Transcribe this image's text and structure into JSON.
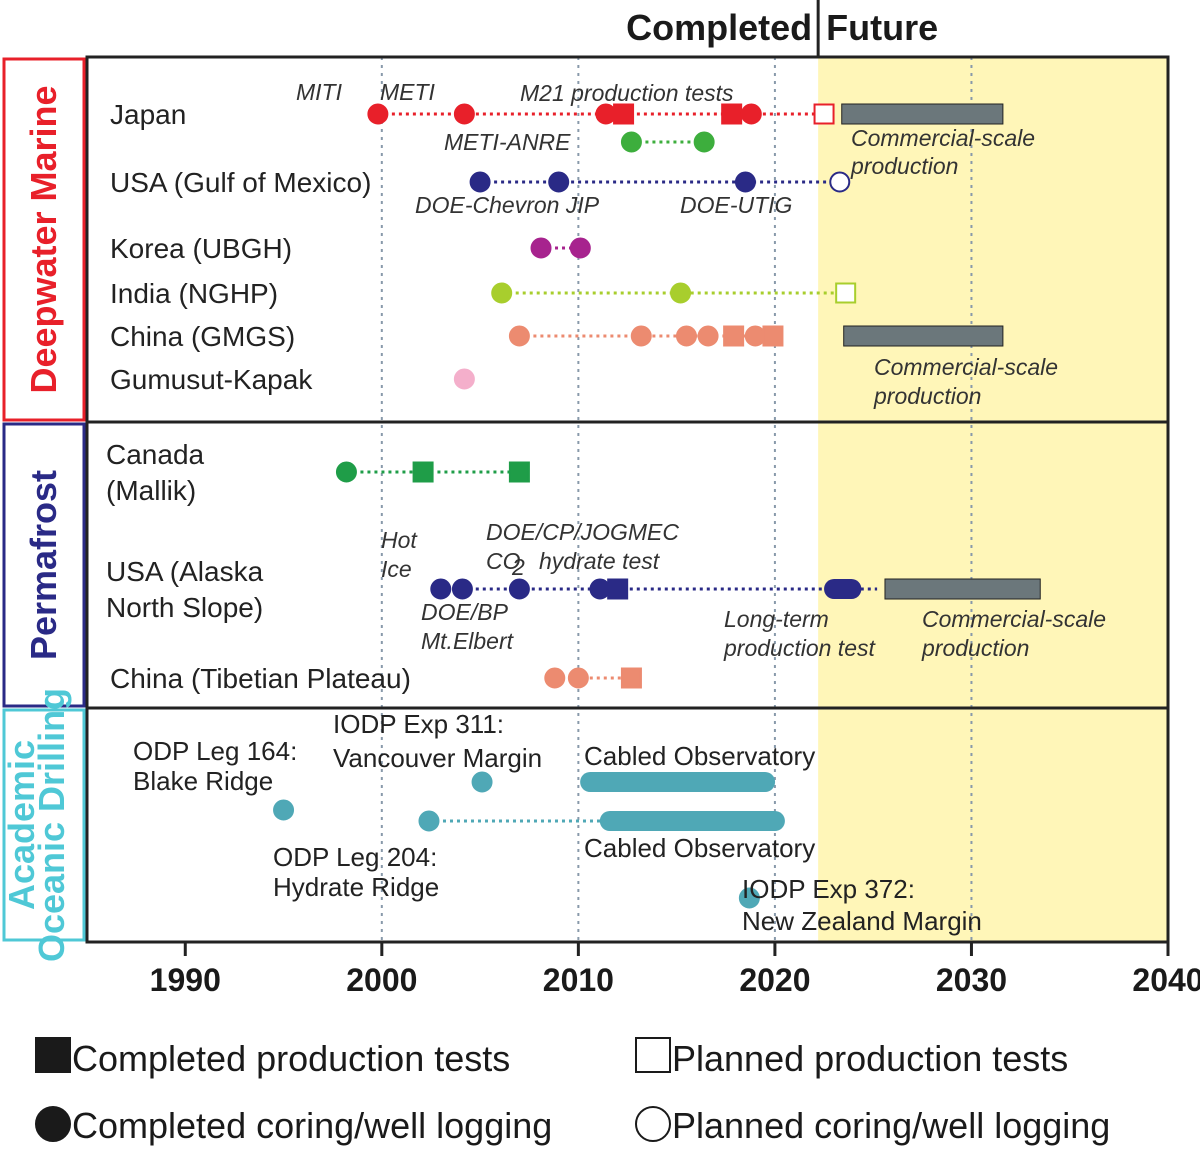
{
  "chart_data": {
    "type": "timeline",
    "x_range": [
      1985,
      2040
    ],
    "x_ticks": [
      "1990",
      "2000",
      "2010",
      "2020",
      "2030",
      "2040"
    ],
    "gridlines": [
      2000,
      2010,
      2020,
      2030
    ],
    "completed_label": "Completed",
    "future_label": "Future",
    "divider_year": 2022.2,
    "colors": {
      "future_fill": "#FFF6B8",
      "frame": "#222222",
      "grid": "#8899AA",
      "commercial_bar": "#6B777B"
    },
    "sections": [
      {
        "name": "Deepwater Marine",
        "color": "#E8202A",
        "rows": [
          {
            "label": "Japan",
            "color": "#E8202A",
            "lines": [
              {
                "from": 1999.8,
                "to": 2022.5
              }
            ],
            "markers": [
              {
                "year": 1999.8,
                "shape": "circle",
                "filled": true
              },
              {
                "year": 2004.2,
                "shape": "circle",
                "filled": true
              },
              {
                "year": 2011.4,
                "shape": "circle",
                "filled": true
              },
              {
                "year": 2012.3,
                "shape": "square",
                "filled": true
              },
              {
                "year": 2017.8,
                "shape": "square",
                "filled": true
              },
              {
                "year": 2018.8,
                "shape": "circle",
                "filled": true
              },
              {
                "year": 2022.5,
                "shape": "square",
                "filled": false
              }
            ],
            "commercial": {
              "from": 2023.4,
              "to": 2031.6
            }
          },
          {
            "label": "",
            "color": "#3DAE3D",
            "lines": [
              {
                "from": 2012.7,
                "to": 2016.4
              }
            ],
            "markers": [
              {
                "year": 2012.7,
                "shape": "circle",
                "filled": true
              },
              {
                "year": 2016.4,
                "shape": "circle",
                "filled": true
              }
            ]
          },
          {
            "label": "USA (Gulf of Mexico)",
            "color": "#2A2A86",
            "lines": [
              {
                "from": 2005.0,
                "to": 2023.3
              }
            ],
            "markers": [
              {
                "year": 2005.0,
                "shape": "circle",
                "filled": true
              },
              {
                "year": 2009.0,
                "shape": "circle",
                "filled": true
              },
              {
                "year": 2018.5,
                "shape": "circle",
                "filled": true
              },
              {
                "year": 2023.3,
                "shape": "circle",
                "filled": false
              }
            ]
          },
          {
            "label": "Korea (UBGH)",
            "color": "#A7238E",
            "lines": [
              {
                "from": 2008.1,
                "to": 2010.1
              }
            ],
            "markers": [
              {
                "year": 2008.1,
                "shape": "circle",
                "filled": true
              },
              {
                "year": 2010.1,
                "shape": "circle",
                "filled": true
              }
            ]
          },
          {
            "label": "India (NGHP)",
            "color": "#A8CE2D",
            "lines": [
              {
                "from": 2006.1,
                "to": 2023.6
              }
            ],
            "markers": [
              {
                "year": 2006.1,
                "shape": "circle",
                "filled": true
              },
              {
                "year": 2015.2,
                "shape": "circle",
                "filled": true
              },
              {
                "year": 2023.6,
                "shape": "square",
                "filled": false
              }
            ]
          },
          {
            "label": "China (GMGS)",
            "color": "#EC8B70",
            "lines": [
              {
                "from": 2007.0,
                "to": 2019.9
              }
            ],
            "markers": [
              {
                "year": 2007.0,
                "shape": "circle",
                "filled": true
              },
              {
                "year": 2013.2,
                "shape": "circle",
                "filled": true
              },
              {
                "year": 2015.5,
                "shape": "circle",
                "filled": true
              },
              {
                "year": 2016.6,
                "shape": "circle",
                "filled": true
              },
              {
                "year": 2017.9,
                "shape": "square",
                "filled": true
              },
              {
                "year": 2019.0,
                "shape": "circle",
                "filled": true
              },
              {
                "year": 2019.9,
                "shape": "square",
                "filled": true
              }
            ],
            "commercial": {
              "from": 2023.5,
              "to": 2031.6
            }
          },
          {
            "label": "Gumusut-Kapak",
            "color": "#F4AFCB",
            "lines": [],
            "markers": [
              {
                "year": 2004.2,
                "shape": "circle",
                "filled": true
              }
            ]
          }
        ]
      },
      {
        "name": "Permafrost",
        "color": "#2A2A86",
        "rows": [
          {
            "label": "Canada",
            "label2": "(Mallik)",
            "color": "#1F9D48",
            "lines": [
              {
                "from": 1998.2,
                "to": 2007.0
              }
            ],
            "markers": [
              {
                "year": 1998.2,
                "shape": "circle",
                "filled": true
              },
              {
                "year": 2002.1,
                "shape": "square",
                "filled": true
              },
              {
                "year": 2007.0,
                "shape": "square",
                "filled": true
              }
            ]
          },
          {
            "label": "USA (Alaska",
            "label2": "North Slope)",
            "color": "#2A2A86",
            "lines": [
              {
                "from": 2003.0,
                "to": 2025.2
              }
            ],
            "markers": [
              {
                "year": 2003.0,
                "shape": "circle",
                "filled": true
              },
              {
                "year": 2004.1,
                "shape": "circle",
                "filled": true
              },
              {
                "year": 2007.0,
                "shape": "circle",
                "filled": true
              },
              {
                "year": 2011.1,
                "shape": "circle",
                "filled": true
              },
              {
                "year": 2012.0,
                "shape": "square",
                "filled": true
              }
            ],
            "long_term": {
              "from": 2022.5,
              "to": 2024.4
            },
            "commercial": {
              "from": 2025.6,
              "to": 2033.5
            }
          },
          {
            "label": "China (Tibetian Plateau)",
            "color": "#EC8B70",
            "lines": [
              {
                "from": 2008.8,
                "to": 2012.7
              }
            ],
            "markers": [
              {
                "year": 2008.8,
                "shape": "circle",
                "filled": true
              },
              {
                "year": 2010.0,
                "shape": "circle",
                "filled": true
              },
              {
                "year": 2012.7,
                "shape": "square",
                "filled": true
              }
            ]
          }
        ]
      },
      {
        "name": "Academic Oceanic Drilling",
        "name_line1": "Academic",
        "name_line2": "Oceanic Drilling",
        "color": "#4FC8D6",
        "rows": [
          {
            "label": "",
            "color": "#4FA8B6",
            "markers": [
              {
                "year": 1995.0,
                "shape": "circle",
                "filled": true
              },
              {
                "year": 2005.1,
                "shape": "circle",
                "filled": true
              },
              {
                "year": 2002.4,
                "shape": "circle",
                "filled": true
              },
              {
                "year": 2018.7,
                "shape": "circle",
                "filled": true
              }
            ],
            "thick_bars": [
              {
                "from": 2010.6,
                "to": 2019.5
              },
              {
                "from": 2011.6,
                "to": 2020.0
              }
            ]
          }
        ]
      }
    ],
    "annotations": [
      {
        "text": "MITI",
        "style": "italic"
      },
      {
        "text": "METI",
        "style": "italic"
      },
      {
        "text": "M21 production tests",
        "style": "italic"
      },
      {
        "text": "METI-ANRE",
        "style": "italic"
      },
      {
        "text": "Commercial-scale",
        "style": "italic"
      },
      {
        "text": "production",
        "style": "italic"
      },
      {
        "text": "DOE-Chevron JIP",
        "style": "italic"
      },
      {
        "text": "DOE-UTIG",
        "style": "italic"
      },
      {
        "text": "Commercial-scale",
        "style": "italic"
      },
      {
        "text": "production",
        "style": "italic"
      },
      {
        "text": "Hot",
        "style": "italic"
      },
      {
        "text": "Ice",
        "style": "italic"
      },
      {
        "text": "DOE/CP/JOGMEC",
        "style": "italic"
      },
      {
        "text": "CO",
        "style": "italic"
      },
      {
        "text": "2",
        "style": "italic"
      },
      {
        "text": "hydrate test",
        "style": "italic"
      },
      {
        "text": "DOE/BP",
        "style": "italic"
      },
      {
        "text": "Mt.Elbert",
        "style": "italic"
      },
      {
        "text": "Long-term",
        "style": "italic"
      },
      {
        "text": "production test",
        "style": "italic"
      },
      {
        "text": "Commercial-scale",
        "style": "italic"
      },
      {
        "text": "production",
        "style": "italic"
      },
      {
        "text": "ODP Leg 164:",
        "style": "plain"
      },
      {
        "text": "Blake Ridge",
        "style": "plain"
      },
      {
        "text": "IODP Exp 311:",
        "style": "plain"
      },
      {
        "text": "Vancouver Margin",
        "style": "plain"
      },
      {
        "text": "Cabled Observatory",
        "style": "plain"
      },
      {
        "text": "Cabled Observatory",
        "style": "plain"
      },
      {
        "text": "ODP Leg 204:",
        "style": "plain"
      },
      {
        "text": "Hydrate Ridge",
        "style": "plain"
      },
      {
        "text": "IODP Exp 372:",
        "style": "plain"
      },
      {
        "text": "New Zealand Margin",
        "style": "plain"
      }
    ],
    "legend": [
      {
        "label": "Completed production tests",
        "shape": "square",
        "filled": true
      },
      {
        "label": "Planned production tests",
        "shape": "square",
        "filled": false
      },
      {
        "label": "Completed coring/well logging",
        "shape": "circle",
        "filled": true
      },
      {
        "label": "Planned coring/well logging",
        "shape": "circle",
        "filled": false
      }
    ]
  }
}
